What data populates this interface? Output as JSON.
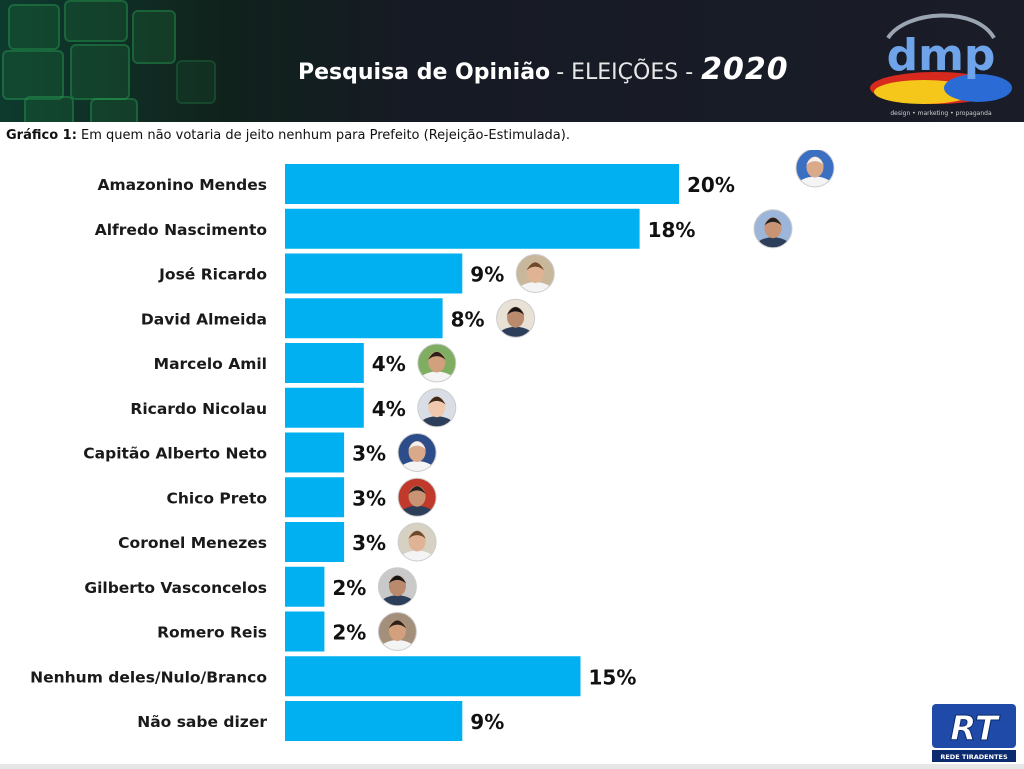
{
  "header": {
    "title_main": "Pesquisa de Opinião",
    "title_sub": "- ELEIÇÕES -",
    "title_year": "2020",
    "logo_text": "dmp",
    "logo_tagline": "design • marketing • propaganda"
  },
  "subtitle": {
    "label": "Gráfico 1:",
    "text": "Em quem não votaria de jeito nenhum para Prefeito (Rejeição-Estimulada)."
  },
  "chart_data": {
    "type": "bar",
    "orientation": "horizontal",
    "categories": [
      "Amazonino Mendes",
      "Alfredo Nascimento",
      "José Ricardo",
      "David Almeida",
      "Marcelo Amil",
      "Ricardo Nicolau",
      "Capitão Alberto Neto",
      "Chico Preto",
      "Coronel Menezes",
      "Gilberto Vasconcelos",
      "Romero Reis",
      "Nenhum deles/Nulo/Branco",
      "Não sabe dizer"
    ],
    "values": [
      20,
      18,
      9,
      8,
      4,
      4,
      3,
      3,
      3,
      2,
      2,
      15,
      9
    ],
    "value_labels": [
      "20%",
      "18%",
      "9%",
      "8%",
      "4%",
      "4%",
      "3%",
      "3%",
      "3%",
      "2%",
      "2%",
      "15%",
      "9%"
    ],
    "photos": [
      true,
      true,
      true,
      true,
      true,
      true,
      true,
      true,
      true,
      true,
      true,
      false,
      false
    ],
    "unit": "%",
    "xlim": [
      0,
      20
    ],
    "grid": false,
    "legend": "none",
    "bar_color": "#00b0f0"
  },
  "footer": {
    "rt_logo_text": "RT",
    "rt_caption": "REDE TIRADENTES"
  }
}
